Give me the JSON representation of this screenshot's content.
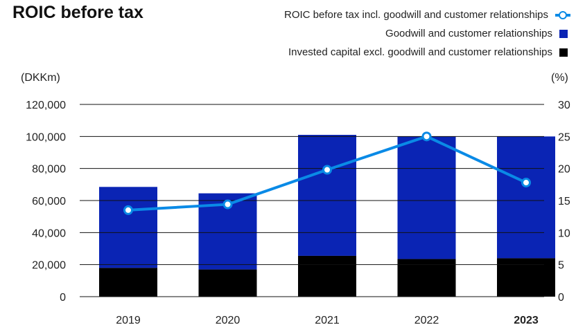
{
  "chart_data": {
    "type": "bar",
    "title": "ROIC before tax",
    "categories": [
      "2019",
      "2020",
      "2021",
      "2022",
      "2023"
    ],
    "highlight_category": "2023",
    "stacked": true,
    "series": [
      {
        "name": "Invested capital excl. goodwill and customer relationships",
        "axis": "left",
        "color": "#000000",
        "values": [
          18000,
          17000,
          25500,
          23500,
          24000
        ]
      },
      {
        "name": "Goodwill and customer relationships",
        "axis": "left",
        "color": "#0a24b4",
        "values": [
          50500,
          47500,
          75500,
          76500,
          76000
        ]
      },
      {
        "name": "ROIC before tax incl. goodwill and customer relationships",
        "type": "line",
        "axis": "right",
        "color": "#0a8ae6",
        "values": [
          13.5,
          14.4,
          19.8,
          25.0,
          17.8
        ]
      }
    ],
    "y_left": {
      "unit_label": "(DKKm)",
      "ylim": [
        0,
        120000
      ],
      "tick_labels": [
        "0",
        "20,000",
        "40,000",
        "60,000",
        "80,000",
        "100,000",
        "120,000"
      ]
    },
    "y_right": {
      "unit_label": "(%)",
      "ylim": [
        0,
        30
      ],
      "tick_labels": [
        "0",
        "5",
        "10",
        "15",
        "20",
        "25",
        "30"
      ]
    },
    "legend_placement": "top-right",
    "grid": true
  }
}
